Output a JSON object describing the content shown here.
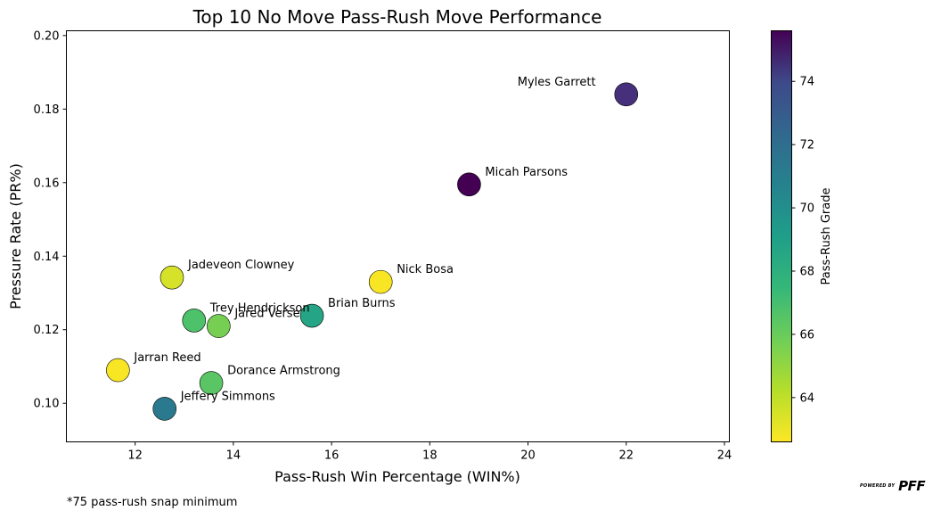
{
  "chart_data": {
    "type": "scatter",
    "title": "Top 10 No Move Pass-Rush Move Performance",
    "xlabel": "Pass-Rush Win Percentage (WIN%)",
    "ylabel": "Pressure Rate (PR%)",
    "xlim": [
      10.6,
      24.1
    ],
    "ylim": [
      0.0895,
      0.2013
    ],
    "xticks": [
      12,
      14,
      16,
      18,
      20,
      22,
      24
    ],
    "yticks": [
      0.1,
      0.12,
      0.14,
      0.16,
      0.18,
      0.2
    ],
    "colorbar": {
      "label": "Pass-Rush Grade",
      "range": [
        62.6,
        75.6
      ],
      "ticks": [
        64,
        66,
        68,
        70,
        72,
        74
      ],
      "colormap": "viridis_r"
    },
    "points": [
      {
        "name": "Myles Garrett",
        "x": 22.0,
        "y": 0.184,
        "grade": 73.8
      },
      {
        "name": "Micah Parsons",
        "x": 18.8,
        "y": 0.1595,
        "grade": 75.6
      },
      {
        "name": "Jadeveon Clowney",
        "x": 12.75,
        "y": 0.1342,
        "grade": 63.4
      },
      {
        "name": "Nick Bosa",
        "x": 17.0,
        "y": 0.133,
        "grade": 62.7
      },
      {
        "name": "Trey Hendrickson",
        "x": 13.2,
        "y": 0.1225,
        "grade": 66.3
      },
      {
        "name": "Jared Verse",
        "x": 13.7,
        "y": 0.121,
        "grade": 65.3
      },
      {
        "name": "Brian Burns",
        "x": 15.6,
        "y": 0.1238,
        "grade": 68.0
      },
      {
        "name": "Jarran Reed",
        "x": 11.65,
        "y": 0.109,
        "grade": 62.7
      },
      {
        "name": "Dorance Armstrong",
        "x": 13.55,
        "y": 0.1055,
        "grade": 66.0
      },
      {
        "name": "Jeffery Simmons",
        "x": 12.6,
        "y": 0.0985,
        "grade": 70.3
      }
    ]
  },
  "footnote": "*75 pass-rush snap minimum",
  "brand": {
    "small": "POWERED BY",
    "logo": "PFF"
  }
}
